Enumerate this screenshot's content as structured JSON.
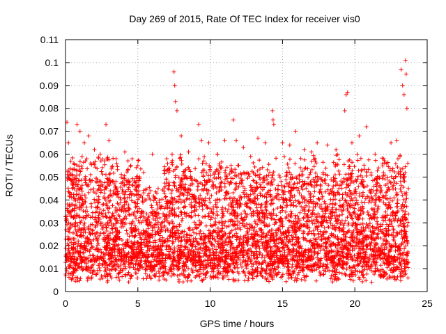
{
  "chart_data": {
    "type": "scatter",
    "title": "Day 269 of 2015, Rate Of TEC Index for receiver vis0",
    "xlabel": "GPS time / hours",
    "ylabel": "ROTI / TECUs",
    "xlim": [
      0,
      25
    ],
    "ylim": [
      0,
      0.11
    ],
    "xticks": [
      "0",
      "5",
      "10",
      "15",
      "20",
      "25"
    ],
    "yticks": [
      "0",
      "0.01",
      "0.02",
      "0.03",
      "0.04",
      "0.05",
      "0.06",
      "0.07",
      "0.08",
      "0.09",
      "0.1",
      "0.11"
    ],
    "xtick_values": [
      0,
      5,
      10,
      15,
      20,
      25
    ],
    "ytick_values": [
      0,
      0.01,
      0.02,
      0.03,
      0.04,
      0.05,
      0.06,
      0.07,
      0.08,
      0.09,
      0.1,
      0.11
    ],
    "grid": true,
    "marker": "+",
    "color": "#ff0000",
    "x_range_of_data": [
      0,
      23.7
    ],
    "series_points": [
      [
        0.1,
        0.074
      ],
      [
        0.2,
        0.065
      ],
      [
        0.8,
        0.073
      ],
      [
        1.0,
        0.07
      ],
      [
        1.3,
        0.065
      ],
      [
        1.6,
        0.068
      ],
      [
        2.0,
        0.062
      ],
      [
        2.4,
        0.06
      ],
      [
        2.8,
        0.073
      ],
      [
        3.0,
        0.066
      ],
      [
        3.5,
        0.058
      ],
      [
        4.1,
        0.061
      ],
      [
        4.6,
        0.058
      ],
      [
        5.0,
        0.055
      ],
      [
        5.4,
        0.052
      ],
      [
        6.0,
        0.06
      ],
      [
        6.4,
        0.045
      ],
      [
        7.0,
        0.058
      ],
      [
        7.5,
        0.096
      ],
      [
        7.55,
        0.09
      ],
      [
        7.6,
        0.083
      ],
      [
        7.7,
        0.079
      ],
      [
        8.0,
        0.068
      ],
      [
        8.5,
        0.061
      ],
      [
        9.2,
        0.073
      ],
      [
        9.4,
        0.066
      ],
      [
        9.9,
        0.065
      ],
      [
        10.5,
        0.06
      ],
      [
        11.0,
        0.066
      ],
      [
        11.6,
        0.075
      ],
      [
        11.8,
        0.066
      ],
      [
        12.3,
        0.063
      ],
      [
        12.8,
        0.059
      ],
      [
        13.3,
        0.067
      ],
      [
        13.8,
        0.065
      ],
      [
        14.3,
        0.079
      ],
      [
        14.35,
        0.075
      ],
      [
        14.4,
        0.073
      ],
      [
        15.0,
        0.065
      ],
      [
        15.5,
        0.064
      ],
      [
        15.9,
        0.07
      ],
      [
        16.5,
        0.062
      ],
      [
        17.0,
        0.061
      ],
      [
        17.4,
        0.065
      ],
      [
        18.1,
        0.064
      ],
      [
        18.7,
        0.062
      ],
      [
        19.3,
        0.079
      ],
      [
        19.4,
        0.086
      ],
      [
        19.5,
        0.087
      ],
      [
        19.8,
        0.065
      ],
      [
        20.3,
        0.068
      ],
      [
        20.8,
        0.072
      ],
      [
        21.4,
        0.06
      ],
      [
        22.0,
        0.058
      ],
      [
        22.5,
        0.065
      ],
      [
        22.9,
        0.066
      ],
      [
        23.2,
        0.097
      ],
      [
        23.3,
        0.09
      ],
      [
        23.4,
        0.086
      ],
      [
        23.5,
        0.101
      ],
      [
        23.55,
        0.095
      ],
      [
        23.6,
        0.08
      ],
      [
        23.7,
        0.045
      ]
    ]
  }
}
